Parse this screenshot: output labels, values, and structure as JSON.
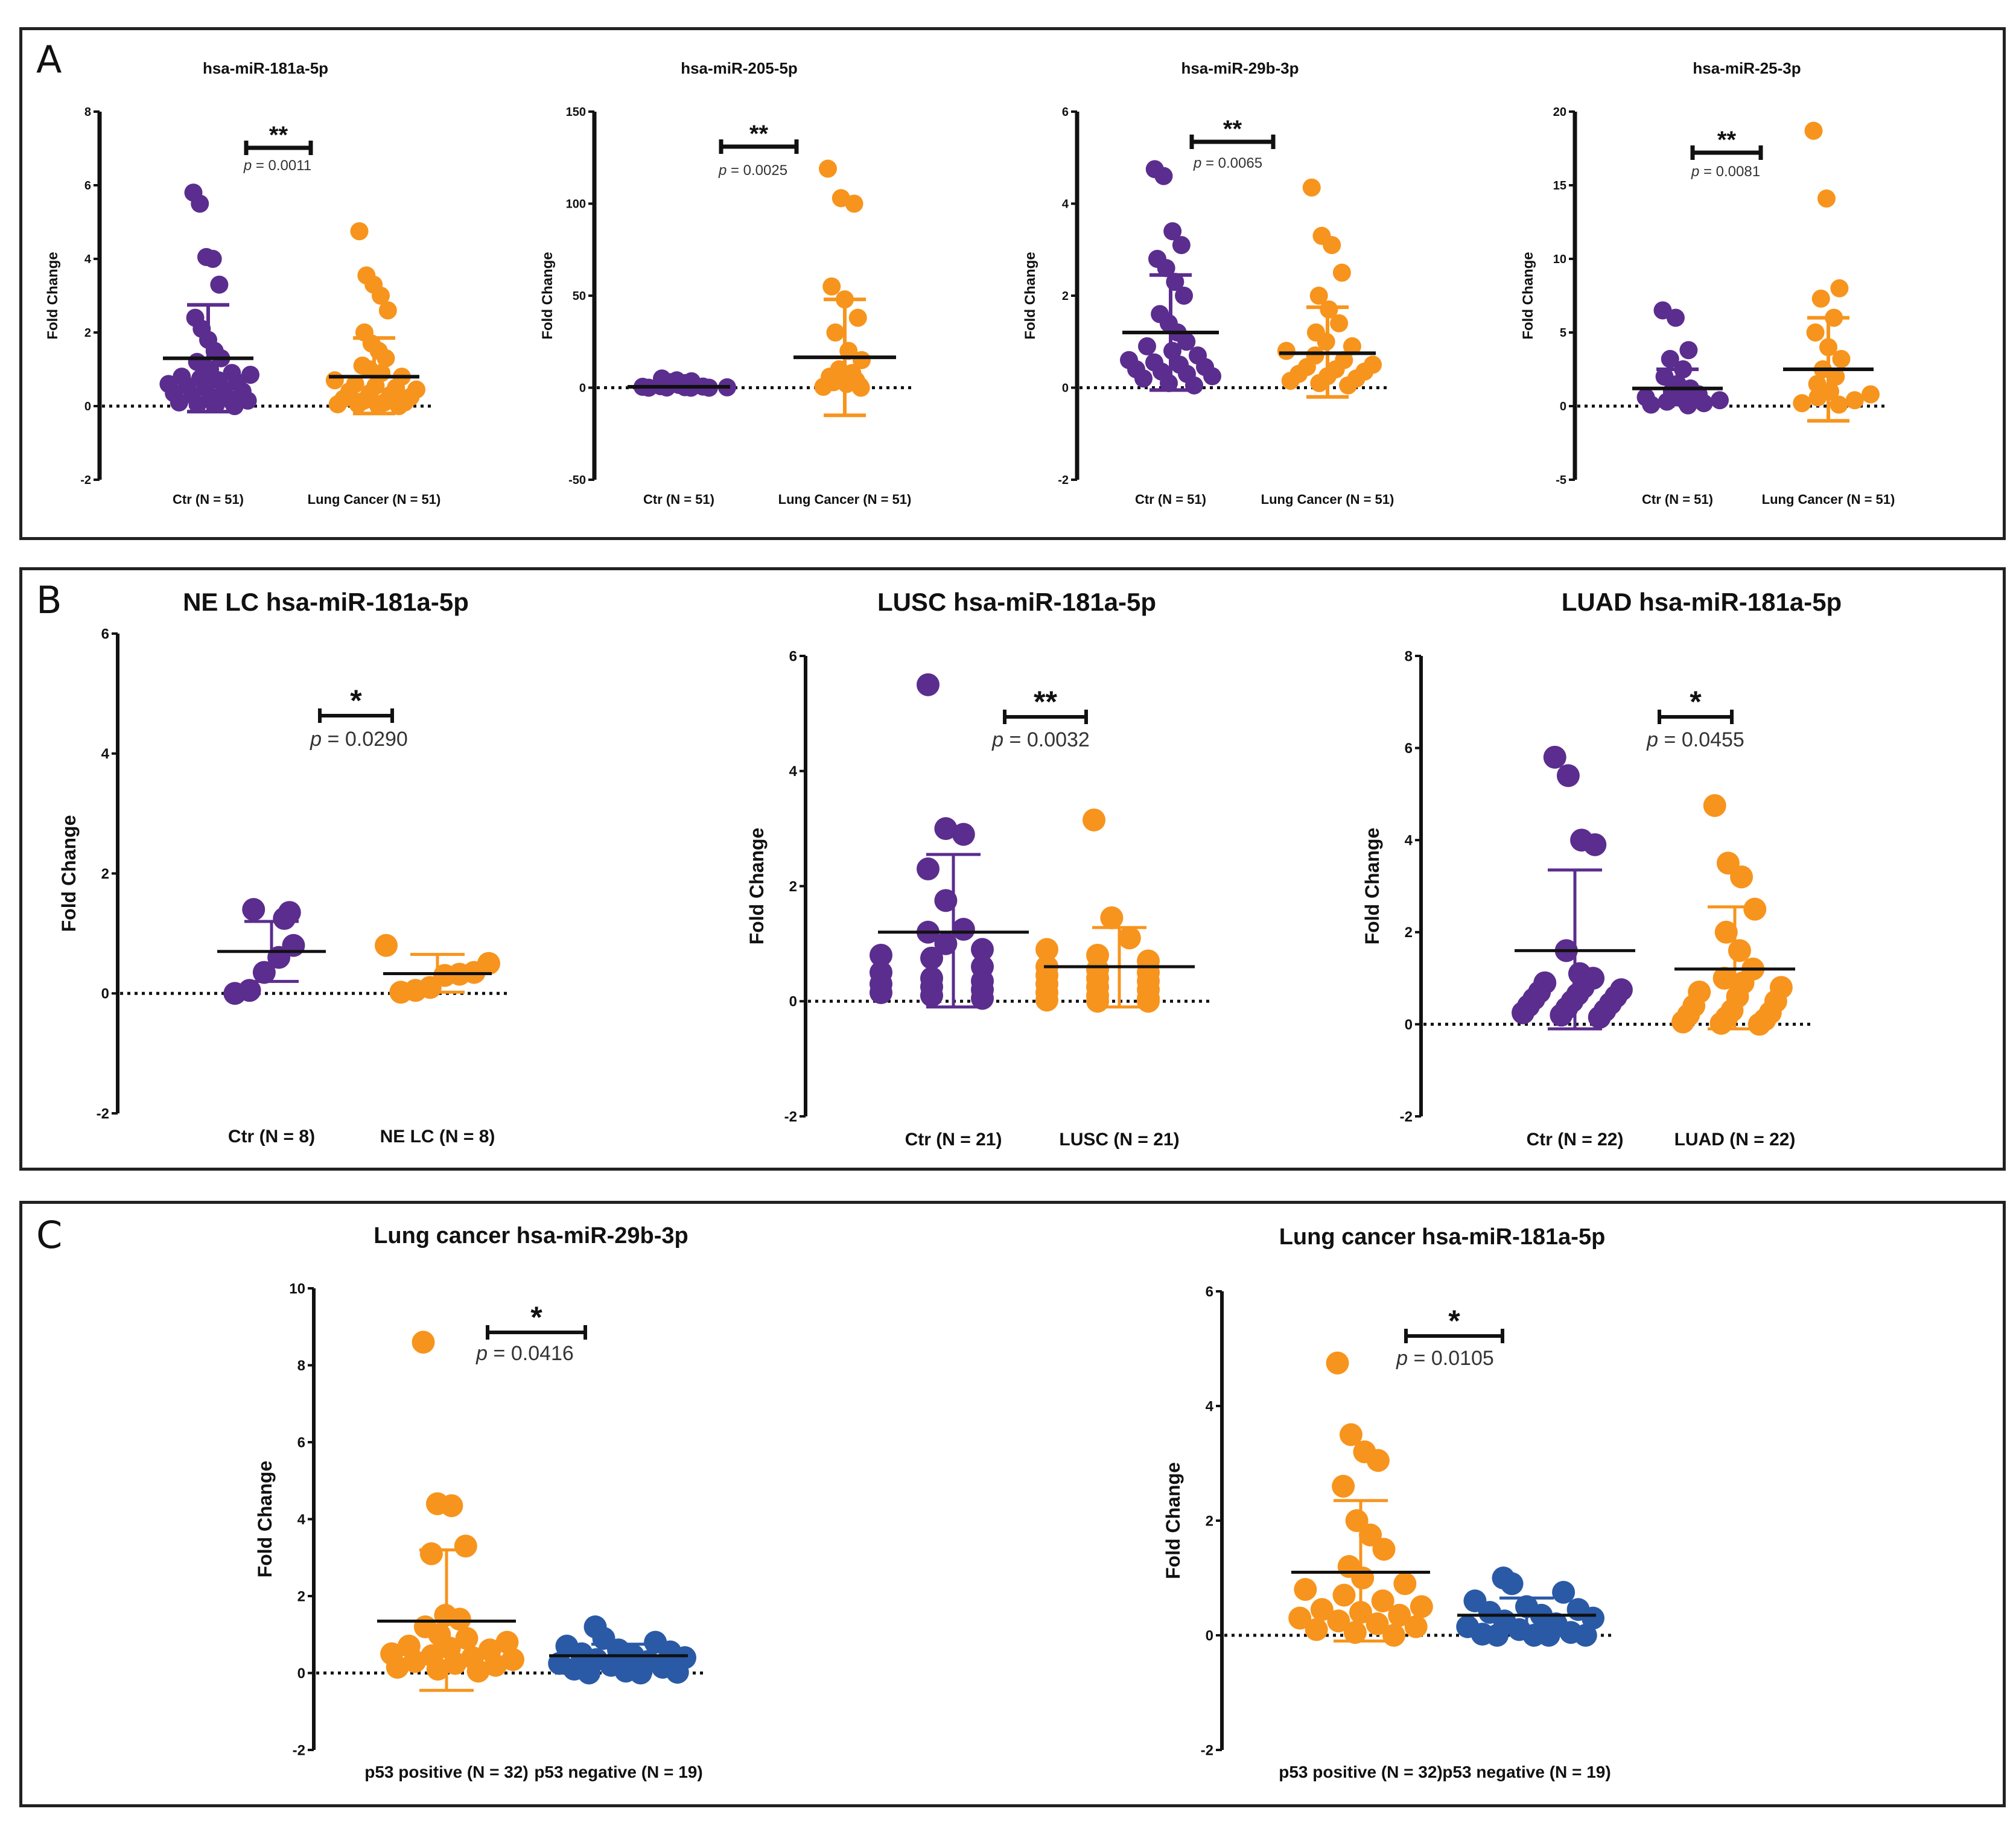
{
  "figure": {
    "panel_labels": [
      "A",
      "B",
      "C"
    ],
    "colors": {
      "ctr": "#5b2d8e",
      "cancer": "#f7941d",
      "negative": "#2a5aa6",
      "axis": "#111111"
    }
  },
  "chart_data": [
    {
      "id": "A1",
      "panel": "A",
      "type": "scatter",
      "title": "hsa-miR-181a-5p",
      "ylabel": "Fold Change",
      "ylim": [
        -2,
        8
      ],
      "yticks": [
        -2,
        0,
        2,
        4,
        6,
        8
      ],
      "yticklabels": [
        "-2",
        "0",
        "2",
        "4",
        "6",
        "8"
      ],
      "groups": [
        {
          "label": "Ctr (N = 51)",
          "color": "#5b2d8e",
          "mean": 1.3,
          "sd_low": -0.15,
          "sd_high": 2.75,
          "points": [
            5.8,
            5.5,
            4.05,
            4.0,
            3.3,
            2.4,
            2.1,
            1.8,
            1.5,
            1.3,
            1.2,
            1.1,
            1.0,
            0.9,
            0.85,
            0.8,
            0.75,
            0.7,
            0.65,
            0.6,
            0.55,
            0.5,
            0.45,
            0.4,
            0.35,
            0.3,
            0.25,
            0.2,
            0.15,
            0.1,
            0.05,
            0.05,
            0.0
          ]
        },
        {
          "label": "Lung Cancer (N = 51)",
          "color": "#f7941d",
          "mean": 0.8,
          "sd_low": -0.2,
          "sd_high": 1.85,
          "points": [
            4.75,
            3.55,
            3.3,
            3.0,
            2.6,
            2.0,
            1.7,
            1.5,
            1.3,
            1.1,
            1.0,
            0.9,
            0.8,
            0.7,
            0.6,
            0.55,
            0.5,
            0.45,
            0.4,
            0.35,
            0.3,
            0.25,
            0.2,
            0.15,
            0.1,
            0.1,
            0.05,
            0.05,
            0.0,
            0.0
          ]
        }
      ],
      "stars": "**",
      "p_label": "p",
      "p_value": "= 0.0011"
    },
    {
      "id": "A2",
      "panel": "A",
      "type": "scatter",
      "title": "hsa-miR-205-5p",
      "ylabel": "Fold Change",
      "ylim": [
        -50,
        150
      ],
      "yticks": [
        -50,
        0,
        50,
        100,
        150
      ],
      "yticklabels": [
        "-50",
        "0",
        "50",
        "100",
        "150"
      ],
      "groups": [
        {
          "label": "Ctr (N = 51)",
          "color": "#5b2d8e",
          "mean": 0.5,
          "sd_low": -1.5,
          "sd_high": 2.5,
          "points": [
            5,
            4,
            3.5,
            3,
            2.5,
            2,
            1.5,
            1,
            0.8,
            0.6,
            0.5,
            0.3,
            0.2,
            0.1,
            0,
            0,
            0
          ]
        },
        {
          "label": "Lung Cancer (N = 51)",
          "color": "#f7941d",
          "mean": 16.5,
          "sd_low": -15,
          "sd_high": 48,
          "points": [
            119,
            103,
            100,
            55,
            48,
            38,
            30,
            20,
            15,
            10,
            8,
            6,
            5,
            4,
            3,
            2,
            1,
            0.5,
            0
          ]
        }
      ],
      "stars": "**",
      "p_label": "p",
      "p_value": "= 0.0025"
    },
    {
      "id": "A3",
      "panel": "A",
      "type": "scatter",
      "title": "hsa-miR-29b-3p",
      "ylabel": "Fold Change",
      "ylim": [
        -2,
        6
      ],
      "yticks": [
        -2,
        0,
        2,
        4,
        6
      ],
      "yticklabels": [
        "-2",
        "0",
        "2",
        "4",
        "6"
      ],
      "groups": [
        {
          "label": "Ctr (N = 51)",
          "color": "#5b2d8e",
          "mean": 1.2,
          "sd_low": -0.05,
          "sd_high": 2.45,
          "points": [
            4.75,
            4.6,
            3.4,
            3.1,
            2.8,
            2.6,
            2.3,
            2.0,
            1.6,
            1.4,
            1.2,
            1.0,
            0.9,
            0.8,
            0.7,
            0.6,
            0.55,
            0.5,
            0.45,
            0.4,
            0.35,
            0.3,
            0.25,
            0.2,
            0.1,
            0.05
          ]
        },
        {
          "label": "Lung Cancer (N = 51)",
          "color": "#f7941d",
          "mean": 0.75,
          "sd_low": -0.2,
          "sd_high": 1.75,
          "points": [
            4.35,
            3.3,
            3.1,
            2.5,
            2.0,
            1.7,
            1.4,
            1.2,
            1.0,
            0.9,
            0.8,
            0.7,
            0.6,
            0.5,
            0.45,
            0.4,
            0.35,
            0.3,
            0.25,
            0.2,
            0.15,
            0.1,
            0.05
          ]
        }
      ],
      "stars": "**",
      "p_label": "p",
      "p_value": "= 0.0065"
    },
    {
      "id": "A4",
      "panel": "A",
      "type": "scatter",
      "title": "hsa-miR-25-3p",
      "ylabel": "Fold Change",
      "ylim": [
        -5,
        20
      ],
      "yticks": [
        -5,
        0,
        5,
        10,
        15,
        20
      ],
      "yticklabels": [
        "-5",
        "0",
        "5",
        "10",
        "15",
        "20"
      ],
      "groups": [
        {
          "label": "Ctr (N = 51)",
          "color": "#5b2d8e",
          "mean": 1.2,
          "sd_low": 0.1,
          "sd_high": 2.5,
          "points": [
            6.5,
            6.0,
            3.8,
            3.2,
            2.5,
            2.0,
            1.5,
            1.2,
            1.0,
            0.8,
            0.6,
            0.5,
            0.4,
            0.3,
            0.2,
            0.1,
            0.05
          ]
        },
        {
          "label": "Lung Cancer (N = 51)",
          "color": "#f7941d",
          "mean": 2.5,
          "sd_low": -1.0,
          "sd_high": 6.0,
          "points": [
            18.7,
            14.1,
            8.0,
            7.3,
            6.0,
            5.0,
            4.0,
            3.2,
            2.5,
            2.0,
            1.5,
            1.0,
            0.8,
            0.6,
            0.4,
            0.2,
            0.1
          ]
        }
      ],
      "stars": "**",
      "p_label": "p",
      "p_value": "= 0.0081"
    },
    {
      "id": "B1",
      "panel": "B",
      "type": "scatter",
      "title": "NE LC hsa-miR-181a-5p",
      "ylabel": "Fold Change",
      "ylim": [
        -2,
        6
      ],
      "yticks": [
        -2,
        0,
        2,
        4,
        6
      ],
      "yticklabels": [
        "-2",
        "0",
        "2",
        "4",
        "6"
      ],
      "groups": [
        {
          "label": "Ctr (N = 8)",
          "color": "#5b2d8e",
          "mean": 0.7,
          "sd_low": 0.2,
          "sd_high": 1.2,
          "points": [
            1.4,
            1.35,
            1.25,
            0.8,
            0.6,
            0.35,
            0.05,
            0.0
          ]
        },
        {
          "label": "NE LC (N = 8)",
          "color": "#f7941d",
          "mean": 0.33,
          "sd_low": 0.02,
          "sd_high": 0.65,
          "points": [
            0.8,
            0.5,
            0.35,
            0.32,
            0.3,
            0.1,
            0.05,
            0.02
          ]
        }
      ],
      "stars": "*",
      "p_label": "p",
      "p_value": "= 0.0290"
    },
    {
      "id": "B2",
      "panel": "B",
      "type": "scatter",
      "title": "LUSC hsa-miR-181a-5p",
      "ylabel": "Fold Change",
      "ylim": [
        -2,
        6
      ],
      "yticks": [
        -2,
        0,
        2,
        4,
        6
      ],
      "yticklabels": [
        "-2",
        "0",
        "2",
        "4",
        "6"
      ],
      "groups": [
        {
          "label": "Ctr (N = 21)",
          "color": "#5b2d8e",
          "mean": 1.2,
          "sd_low": -0.1,
          "sd_high": 2.55,
          "points": [
            5.5,
            3.0,
            2.9,
            2.3,
            1.75,
            1.25,
            1.2,
            1.0,
            0.9,
            0.8,
            0.75,
            0.6,
            0.5,
            0.4,
            0.35,
            0.3,
            0.25,
            0.2,
            0.15,
            0.1,
            0.05
          ]
        },
        {
          "label": "LUSC (N = 21)",
          "color": "#f7941d",
          "mean": 0.6,
          "sd_low": -0.1,
          "sd_high": 1.28,
          "points": [
            3.15,
            1.45,
            1.1,
            0.9,
            0.8,
            0.7,
            0.6,
            0.55,
            0.5,
            0.45,
            0.4,
            0.35,
            0.3,
            0.25,
            0.2,
            0.15,
            0.1,
            0.05,
            0.02,
            0.0,
            0.0
          ]
        }
      ],
      "stars": "**",
      "p_label": "p",
      "p_value": "= 0.0032"
    },
    {
      "id": "B3",
      "panel": "B",
      "type": "scatter",
      "title": "LUAD hsa-miR-181a-5p",
      "ylabel": "Fold Change",
      "ylim": [
        -2,
        8
      ],
      "yticks": [
        -2,
        0,
        2,
        4,
        6,
        8
      ],
      "yticklabels": [
        "-2",
        "0",
        "2",
        "4",
        "6",
        "8"
      ],
      "groups": [
        {
          "label": "Ctr (N = 22)",
          "color": "#5b2d8e",
          "mean": 1.6,
          "sd_low": -0.1,
          "sd_high": 3.35,
          "points": [
            5.8,
            5.4,
            4.0,
            3.9,
            1.6,
            1.1,
            1.0,
            0.9,
            0.8,
            0.75,
            0.7,
            0.65,
            0.6,
            0.55,
            0.5,
            0.45,
            0.4,
            0.35,
            0.3,
            0.25,
            0.2,
            0.15
          ]
        },
        {
          "label": "LUAD (N = 22)",
          "color": "#f7941d",
          "mean": 1.2,
          "sd_low": -0.1,
          "sd_high": 2.55,
          "points": [
            4.75,
            3.5,
            3.2,
            2.5,
            2.0,
            1.6,
            1.2,
            1.0,
            0.9,
            0.8,
            0.7,
            0.6,
            0.5,
            0.4,
            0.3,
            0.25,
            0.2,
            0.15,
            0.1,
            0.05,
            0.02,
            0.0
          ]
        }
      ],
      "stars": "*",
      "p_label": "p",
      "p_value": "= 0.0455"
    },
    {
      "id": "C1",
      "panel": "C",
      "type": "scatter",
      "title": "Lung cancer hsa-miR-29b-3p",
      "ylabel": "Fold Change",
      "ylim": [
        -2,
        10
      ],
      "yticks": [
        -2,
        0,
        2,
        4,
        6,
        8,
        10
      ],
      "yticklabels": [
        "-2",
        "0",
        "2",
        "4",
        "6",
        "8",
        "10"
      ],
      "groups": [
        {
          "label": "p53 positive (N = 32)",
          "color": "#f7941d",
          "mean": 1.35,
          "sd_low": -0.45,
          "sd_high": 3.2,
          "points": [
            8.6,
            4.4,
            4.35,
            3.3,
            3.1,
            1.5,
            1.4,
            1.2,
            1.0,
            0.9,
            0.8,
            0.7,
            0.65,
            0.6,
            0.5,
            0.45,
            0.4,
            0.35,
            0.3,
            0.25,
            0.2,
            0.15,
            0.1,
            0.05
          ]
        },
        {
          "label": "p53 negative (N = 19)",
          "color": "#2a5aa6",
          "mean": 0.45,
          "sd_low": 0.15,
          "sd_high": 0.75,
          "points": [
            1.2,
            0.9,
            0.8,
            0.7,
            0.6,
            0.55,
            0.5,
            0.45,
            0.4,
            0.35,
            0.3,
            0.25,
            0.2,
            0.15,
            0.1,
            0.05,
            0.02,
            0.0,
            0.0
          ]
        }
      ],
      "stars": "*",
      "p_label": "p",
      "p_value": "= 0.0416"
    },
    {
      "id": "C2",
      "panel": "C",
      "type": "scatter",
      "title": "Lung cancer hsa-miR-181a-5p",
      "ylabel": "Fold Change",
      "ylim": [
        -2,
        6
      ],
      "yticks": [
        -2,
        0,
        2,
        4,
        6
      ],
      "yticklabels": [
        "-2",
        "0",
        "2",
        "4",
        "6"
      ],
      "groups": [
        {
          "label": "p53 positive (N = 32)",
          "color": "#f7941d",
          "mean": 1.1,
          "sd_low": -0.1,
          "sd_high": 2.35,
          "points": [
            4.75,
            3.5,
            3.2,
            3.05,
            2.6,
            2.0,
            1.75,
            1.5,
            1.2,
            1.0,
            0.9,
            0.8,
            0.7,
            0.6,
            0.5,
            0.45,
            0.4,
            0.35,
            0.3,
            0.25,
            0.2,
            0.15,
            0.1,
            0.05,
            0.0
          ]
        },
        {
          "label": "p53 negative (N = 19)",
          "color": "#2a5aa6",
          "mean": 0.35,
          "sd_low": 0.05,
          "sd_high": 0.65,
          "points": [
            1.0,
            0.9,
            0.75,
            0.6,
            0.5,
            0.45,
            0.4,
            0.35,
            0.3,
            0.25,
            0.2,
            0.15,
            0.1,
            0.05,
            0.02,
            0.0,
            0.0,
            0.0,
            0.0
          ]
        }
      ],
      "stars": "*",
      "p_label": "p",
      "p_value": "= 0.0105"
    }
  ]
}
